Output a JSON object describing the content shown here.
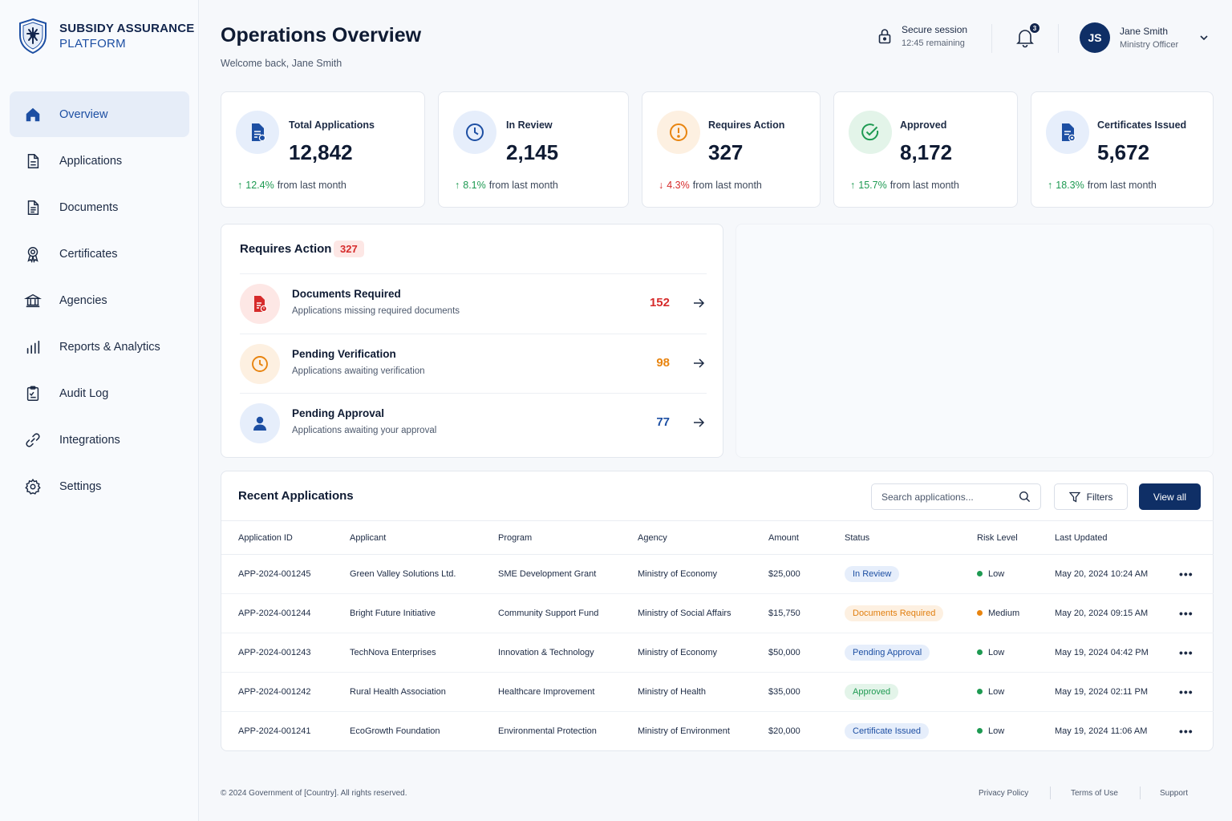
{
  "brand": {
    "line1": "SUBSIDY ASSURANCE",
    "line2": "PLATFORM",
    "logo_icon": "crest-shield-icon"
  },
  "nav": [
    {
      "label": "Overview",
      "icon": "home-icon",
      "active": true
    },
    {
      "label": "Applications",
      "icon": "file-icon"
    },
    {
      "label": "Documents",
      "icon": "document-icon"
    },
    {
      "label": "Certificates",
      "icon": "award-icon"
    },
    {
      "label": "Agencies",
      "icon": "bank-icon"
    },
    {
      "label": "Reports & Analytics",
      "icon": "bar-chart-icon"
    },
    {
      "label": "Audit Log",
      "icon": "clipboard-icon"
    },
    {
      "label": "Integrations",
      "icon": "link-icon"
    },
    {
      "label": "Settings",
      "icon": "gear-icon"
    }
  ],
  "header": {
    "title": "Operations Overview",
    "subtitle": "Welcome back, Jane Smith",
    "session_title": "Secure session",
    "session_remaining": "12:45 remaining",
    "notifications": "3",
    "user_initials": "JS",
    "user_name": "Jane Smith",
    "user_role": "Ministry Officer"
  },
  "stats": [
    {
      "label": "Total Applications",
      "value": "12,842",
      "change": "12.4%",
      "direction": "up",
      "suffix": "from last month",
      "icon": "document-icon"
    },
    {
      "label": "In Review",
      "value": "2,145",
      "change": "8.1%",
      "direction": "up",
      "suffix": "from last month",
      "icon": "clock-icon"
    },
    {
      "label": "Requires Action",
      "value": "327",
      "change": "4.3%",
      "direction": "down",
      "suffix": "from last month",
      "icon": "alert-icon"
    },
    {
      "label": "Approved",
      "value": "8,172",
      "change": "15.7%",
      "direction": "up",
      "suffix": "from last month",
      "icon": "check-circle-icon"
    },
    {
      "label": "Certificates Issued",
      "value": "5,672",
      "change": "18.3%",
      "direction": "up",
      "suffix": "from last month",
      "icon": "certificate-icon"
    }
  ],
  "requires_action": {
    "title": "Requires Action",
    "count": "327",
    "items": [
      {
        "title": "Documents Required",
        "subtitle": "Applications missing required documents",
        "count": "152",
        "color": "#d62b2b",
        "icon": "document-alert-icon"
      },
      {
        "title": "Pending Verification",
        "subtitle": "Applications awaiting verification",
        "count": "98",
        "color": "#e8840f",
        "icon": "clock-icon"
      },
      {
        "title": "Pending Approval",
        "subtitle": "Applications awaiting your approval",
        "count": "77",
        "color": "#1d4fa3",
        "icon": "user-icon"
      }
    ]
  },
  "recent": {
    "title": "Recent Applications",
    "search_placeholder": "Search applications...",
    "filters_label": "Filters",
    "view_all_label": "View all",
    "columns": [
      "Application ID",
      "Applicant",
      "Program",
      "Agency",
      "Amount",
      "Status",
      "Risk Level",
      "Last Updated"
    ],
    "rows": [
      {
        "id": "APP-2024-001245",
        "applicant": "Green Valley Solutions Ltd.",
        "program": "SME Development Grant",
        "agency": "Ministry of Economy",
        "amount": "$25,000",
        "status": "In Review",
        "status_class": "st-review",
        "risk": "Low",
        "risk_color": "#1e9a52",
        "updated": "May 20, 2024 10:24 AM"
      },
      {
        "id": "APP-2024-001244",
        "applicant": "Bright Future Initiative",
        "program": "Community Support Fund",
        "agency": "Ministry of Social Affairs",
        "amount": "$15,750",
        "status": "Documents Required",
        "status_class": "st-docs",
        "risk": "Medium",
        "risk_color": "#e8840f",
        "updated": "May 20, 2024 09:15 AM"
      },
      {
        "id": "APP-2024-001243",
        "applicant": "TechNova Enterprises",
        "program": "Innovation & Technology",
        "agency": "Ministry of Economy",
        "amount": "$50,000",
        "status": "Pending Approval",
        "status_class": "st-pend",
        "risk": "Low",
        "risk_color": "#1e9a52",
        "updated": "May 19, 2024 04:42 PM"
      },
      {
        "id": "APP-2024-001242",
        "applicant": "Rural Health Association",
        "program": "Healthcare Improvement",
        "agency": "Ministry of Health",
        "amount": "$35,000",
        "status": "Approved",
        "status_class": "st-appr",
        "risk": "Low",
        "risk_color": "#1e9a52",
        "updated": "May 19, 2024 02:11 PM"
      },
      {
        "id": "APP-2024-001241",
        "applicant": "EcoGrowth Foundation",
        "program": "Environmental Protection",
        "agency": "Ministry of Environment",
        "amount": "$20,000",
        "status": "Certificate Issued",
        "status_class": "st-cert",
        "risk": "Low",
        "risk_color": "#1e9a52",
        "updated": "May 19, 2024 11:06 AM"
      }
    ],
    "more_label": "•••"
  },
  "footer": {
    "copyright": "© 2024 Government of [Country]. All rights reserved.",
    "links": [
      "Privacy Policy",
      "Terms of Use",
      "Support"
    ]
  },
  "colors": {
    "primary": "#0f2f66",
    "accent": "#1d4fa3",
    "success": "#1e9a52",
    "danger": "#d62b2b",
    "warning": "#e8840f"
  }
}
